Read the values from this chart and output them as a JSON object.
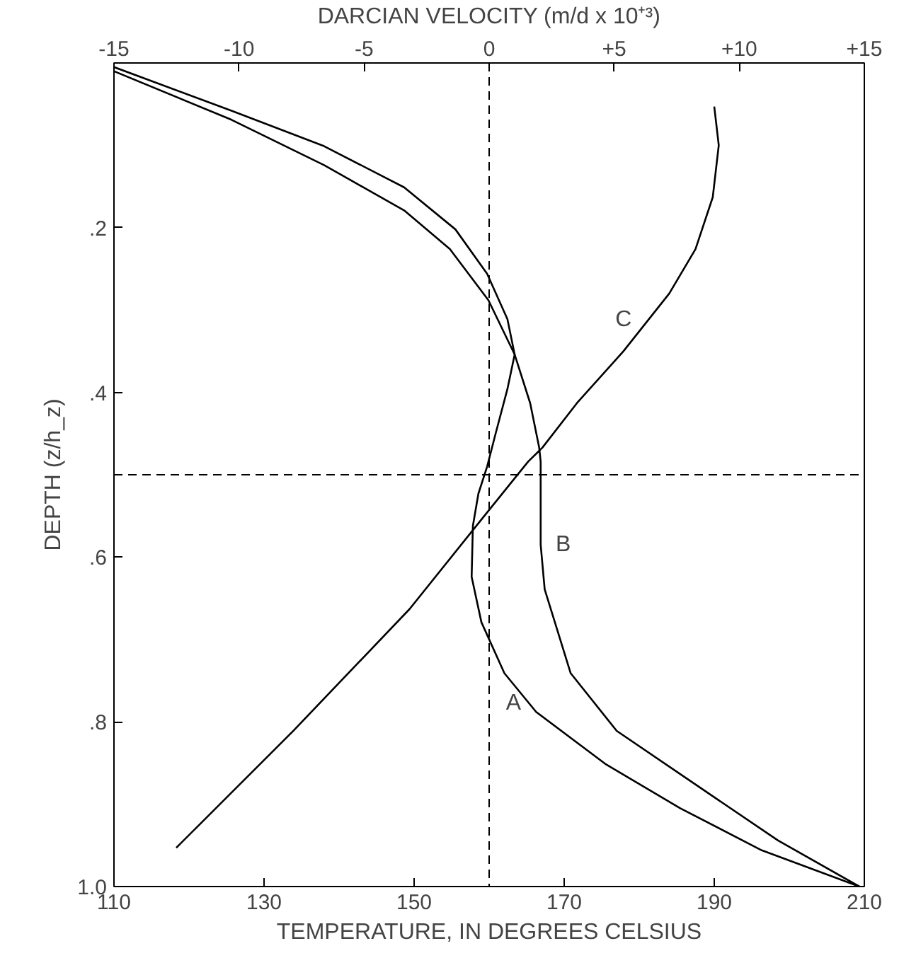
{
  "chart_data": {
    "type": "line",
    "xlabel": "TEMPERATURE, IN DEGREES CELSIUS",
    "x2label": "DARCIAN VELOCITY (m/d x 10⁺³)",
    "ylabel": "DEPTH (z/h_z)",
    "xlim": [
      110,
      210
    ],
    "xticks": [
      110,
      130,
      150,
      170,
      190,
      210
    ],
    "x2lim": [
      -15,
      15
    ],
    "x2ticks": [
      -15,
      -10,
      -5,
      0,
      {
        "value": 5,
        "label": "+5"
      },
      {
        "value": 10,
        "label": "+10"
      },
      {
        "value": 15,
        "label": "+15"
      }
    ],
    "ylim": [
      1.0,
      0.0
    ],
    "yticks": [
      {
        "value": 0.2,
        "label": ".2"
      },
      {
        "value": 0.4,
        "label": ".4"
      },
      {
        "value": 0.6,
        "label": ".6"
      },
      {
        "value": 0.8,
        "label": ".8"
      },
      {
        "value": 1.0,
        "label": "1.0"
      }
    ],
    "grid": false,
    "legend": false,
    "marker": "none",
    "line_style": "solid",
    "series": [
      {
        "name": "A",
        "color": "#000000",
        "axis": "x2",
        "x": [
          -15,
          -10.3,
          -6.6,
          -3.4,
          -1.35,
          -0.08,
          0.73,
          1.02,
          0.73,
          0.25,
          -0.08,
          -0.43,
          -0.65,
          -0.7,
          -0.31,
          0.61,
          1.88,
          4.64,
          7.64,
          10.9,
          14.8
        ],
        "values": [
          0.005,
          0.058,
          0.101,
          0.151,
          0.202,
          0.256,
          0.311,
          0.354,
          0.396,
          0.451,
          0.49,
          0.523,
          0.562,
          0.624,
          0.679,
          0.741,
          0.788,
          0.851,
          0.905,
          0.956,
          1.0
        ]
      },
      {
        "name": "B",
        "color": "#000000",
        "axis": "x2",
        "x": [
          -15,
          -10.3,
          -6.6,
          -3.4,
          -1.57,
          -0.03,
          1.02,
          1.64,
          2.0,
          2.06,
          2.06,
          2.22,
          3.26,
          5.1,
          8.1,
          11.55,
          14.8
        ],
        "values": [
          0.01,
          0.069,
          0.124,
          0.179,
          0.226,
          0.288,
          0.354,
          0.413,
          0.467,
          0.484,
          0.585,
          0.639,
          0.741,
          0.811,
          0.873,
          0.944,
          1.0
        ]
      },
      {
        "name": "C",
        "color": "#000000",
        "x": [
          190.0,
          190.6,
          189.8,
          187.5,
          184.0,
          177.9,
          171.7,
          167.1,
          165.2,
          159.0,
          149.4,
          134.0,
          118.3
        ],
        "values": [
          0.053,
          0.1,
          0.163,
          0.226,
          0.28,
          0.35,
          0.413,
          0.467,
          0.484,
          0.554,
          0.663,
          0.81,
          0.953
        ]
      }
    ],
    "ref_lines": [
      {
        "axis": "x",
        "value": 160,
        "line_style": "dashed",
        "color": "#000000"
      },
      {
        "axis": "y",
        "value": 0.5,
        "line_style": "dashed",
        "color": "#000000"
      }
    ]
  }
}
